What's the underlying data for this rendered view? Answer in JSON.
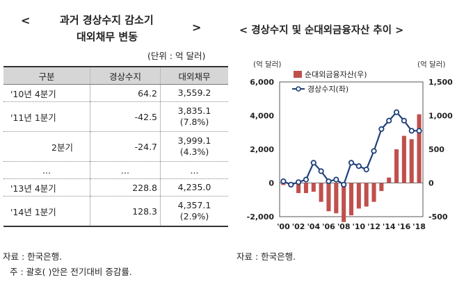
{
  "left_panel": {
    "title_line1": "과거 경상수지 감소기",
    "title_line2": "대외채무 변동",
    "bracket_open": "<",
    "bracket_close": ">",
    "unit": "(단위 : 억 달러)",
    "headers": [
      "구분",
      "경상수지",
      "대외채무"
    ],
    "rows": [
      {
        "period": "'10년 4분기",
        "current_account": "64.2",
        "debt": "3,559.2",
        "change": ""
      },
      {
        "period": "'11년 1분기",
        "current_account": "-42.5",
        "debt": "3,835.1",
        "change": "(7.8%)"
      },
      {
        "period": "2분기",
        "current_account": "-24.7",
        "debt": "3,999.1",
        "change": "(4.3%)"
      },
      {
        "period": "...",
        "current_account": "...",
        "debt": "...",
        "change": ""
      },
      {
        "period": "'13년 4분기",
        "current_account": "228.8",
        "debt": "4,235.0",
        "change": ""
      },
      {
        "period": "'14년 1분기",
        "current_account": "128.3",
        "debt": "4,357.1",
        "change": "(2.9%)"
      }
    ],
    "source": "자료 : 한국은행.",
    "footnote": "주 : 괄호( )안은 전기대비 증감률."
  },
  "right_panel": {
    "title": "< 경상수지 및 순대외금융자산 추이 >",
    "source": "자료 : 한국은행."
  },
  "chart_data": {
    "type": "bar",
    "title": "경상수지 및 순대외금융자산 추이",
    "left_axis_label": "(억 달러)",
    "right_axis_label": "(억 달러)",
    "x": [
      "00",
      "01",
      "02",
      "03",
      "04",
      "05",
      "06",
      "07",
      "08",
      "09",
      "10",
      "11",
      "12",
      "13",
      "14",
      "15",
      "16",
      "17",
      "18"
    ],
    "x_tick_labels": [
      "'00",
      "'02",
      "'04",
      "'06",
      "'08",
      "'10",
      "'12",
      "'14",
      "'16",
      "'18"
    ],
    "left_ylim": [
      -2000,
      6000
    ],
    "left_yticks": [
      "6,000",
      "4,000",
      "2,000",
      "0",
      "-2,000"
    ],
    "right_ylim": [
      -500,
      1500
    ],
    "right_yticks": [
      "1,500",
      "1,000",
      "500",
      "0",
      "-500"
    ],
    "series": [
      {
        "name": "순대외금융자산(우)",
        "axis": "right",
        "kind": "bar",
        "color": "#c0504d",
        "values": [
          -30,
          -60,
          -150,
          -150,
          -130,
          -280,
          -420,
          -450,
          -580,
          -480,
          -380,
          -350,
          -280,
          -120,
          80,
          500,
          700,
          650,
          1020
        ]
      },
      {
        "name": "경상수지(좌)",
        "axis": "left",
        "kind": "line",
        "color": "#1f3f7a",
        "values": [
          100,
          -100,
          50,
          200,
          1200,
          700,
          100,
          200,
          -100,
          1200,
          1000,
          800,
          1900,
          3200,
          3700,
          4200,
          3700,
          3100,
          3100
        ]
      }
    ],
    "grid": false,
    "legend": "top-left"
  }
}
